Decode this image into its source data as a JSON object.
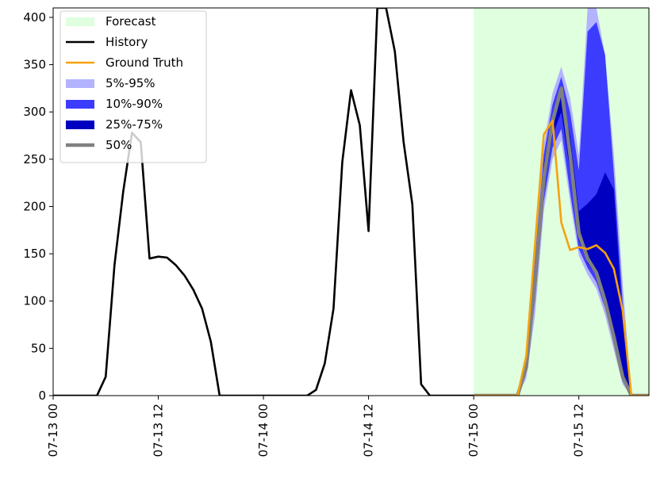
{
  "chart_data": {
    "type": "area",
    "x_unit": "hours from 07-13 00",
    "xlim": [
      0,
      68
    ],
    "ylim": [
      0,
      410
    ],
    "y_ticks": [
      0,
      50,
      100,
      150,
      200,
      250,
      300,
      350,
      400
    ],
    "x_ticks": [
      {
        "x": 0,
        "label": "07-13 00"
      },
      {
        "x": 12,
        "label": "07-13 12"
      },
      {
        "x": 24,
        "label": "07-14 00"
      },
      {
        "x": 36,
        "label": "07-14 12"
      },
      {
        "x": 48,
        "label": "07-15 00"
      },
      {
        "x": 60,
        "label": "07-15 12"
      }
    ],
    "forecast_region": {
      "start": 48,
      "end": 68
    },
    "colors": {
      "forecast": "#dfffdf",
      "history": "#000000",
      "ground_truth": "#f5a20f",
      "band_5_95": "#b3b3ff",
      "band_10_90": "#3c3cff",
      "band_25_75": "#0000c0",
      "median": "#808080"
    },
    "legend": {
      "placement": "top-left",
      "entries": [
        {
          "key": "forecast",
          "label": "Forecast",
          "kind": "patch"
        },
        {
          "key": "history",
          "label": "History",
          "kind": "line"
        },
        {
          "key": "ground_truth",
          "label": "Ground Truth",
          "kind": "line"
        },
        {
          "key": "band_5_95",
          "label": "5%-95%",
          "kind": "patch"
        },
        {
          "key": "band_10_90",
          "label": "10%-90%",
          "kind": "patch"
        },
        {
          "key": "band_25_75",
          "label": "25%-75%",
          "kind": "patch"
        },
        {
          "key": "median",
          "label": "50%",
          "kind": "thick-line"
        }
      ]
    },
    "series": [
      {
        "key": "history",
        "x": [
          0,
          1,
          2,
          3,
          4,
          5,
          6,
          7,
          8,
          9,
          10,
          11,
          12,
          13,
          14,
          15,
          16,
          17,
          18,
          19,
          20,
          21,
          22,
          23,
          24,
          25,
          26,
          27,
          28,
          29,
          30,
          31,
          32,
          33,
          34,
          35,
          36,
          37,
          38,
          39,
          40,
          41,
          42,
          43,
          44,
          45,
          46,
          47,
          48
        ],
        "y": [
          0,
          0,
          0,
          0,
          0,
          0,
          20,
          138,
          216,
          278,
          268,
          145,
          147,
          146,
          138,
          127,
          112,
          92,
          57,
          0,
          0,
          0,
          0,
          0,
          0,
          0,
          0,
          0,
          0,
          0,
          6,
          34,
          92,
          247,
          323,
          286,
          174,
          410,
          410,
          364,
          268,
          202,
          12,
          0,
          0,
          0,
          0,
          0,
          0
        ]
      },
      {
        "key": "ground_truth",
        "x": [
          48,
          49,
          50,
          51,
          52,
          53,
          54,
          55,
          56,
          57,
          58,
          59,
          60,
          61,
          62,
          63,
          64,
          65,
          66,
          67,
          68
        ],
        "y": [
          0,
          0,
          0,
          0,
          0,
          0,
          42,
          160,
          276,
          291,
          183,
          154,
          157,
          155,
          159,
          151,
          134,
          90,
          0,
          0,
          0
        ]
      },
      {
        "key": "median",
        "x": [
          48,
          49,
          50,
          51,
          52,
          53,
          54,
          55,
          56,
          57,
          58,
          59,
          60,
          61,
          62,
          63,
          64,
          65,
          66,
          67,
          68
        ],
        "y": [
          0,
          0,
          0,
          0,
          0,
          0,
          30,
          120,
          230,
          290,
          325,
          255,
          172,
          145,
          130,
          100,
          62,
          20,
          0,
          0,
          0
        ]
      }
    ],
    "bands": [
      {
        "key": "band_5_95",
        "x": [
          48,
          49,
          50,
          51,
          52,
          53,
          54,
          55,
          56,
          57,
          58,
          59,
          60,
          61,
          62,
          63,
          64,
          65,
          66,
          67,
          68
        ],
        "lower": [
          0,
          0,
          0,
          0,
          0,
          0,
          18,
          85,
          195,
          250,
          270,
          205,
          148,
          128,
          113,
          85,
          48,
          12,
          0,
          0,
          0
        ],
        "upper": [
          0,
          0,
          0,
          0,
          0,
          0,
          45,
          155,
          265,
          320,
          348,
          315,
          255,
          410,
          410,
          360,
          255,
          120,
          0,
          0,
          0
        ]
      },
      {
        "key": "band_10_90",
        "x": [
          48,
          49,
          50,
          51,
          52,
          53,
          54,
          55,
          56,
          57,
          58,
          59,
          60,
          61,
          62,
          63,
          64,
          65,
          66,
          67,
          68
        ],
        "lower": [
          0,
          0,
          0,
          0,
          0,
          0,
          24,
          100,
          205,
          262,
          282,
          215,
          155,
          135,
          120,
          92,
          55,
          15,
          0,
          0,
          0
        ],
        "upper": [
          0,
          0,
          0,
          0,
          0,
          0,
          38,
          145,
          255,
          308,
          337,
          300,
          238,
          385,
          395,
          360,
          235,
          100,
          0,
          0,
          0
        ]
      },
      {
        "key": "band_25_75",
        "x": [
          48,
          49,
          50,
          51,
          52,
          53,
          54,
          55,
          56,
          57,
          58,
          59,
          60,
          61,
          62,
          63,
          64,
          65,
          66,
          67,
          68
        ],
        "lower": [
          0,
          0,
          0,
          0,
          0,
          0,
          28,
          110,
          218,
          275,
          300,
          238,
          165,
          140,
          127,
          98,
          60,
          18,
          0,
          0,
          0
        ],
        "upper": [
          0,
          0,
          0,
          0,
          0,
          0,
          33,
          132,
          245,
          297,
          320,
          275,
          195,
          203,
          213,
          236,
          218,
          80,
          0,
          0,
          0
        ]
      }
    ]
  }
}
